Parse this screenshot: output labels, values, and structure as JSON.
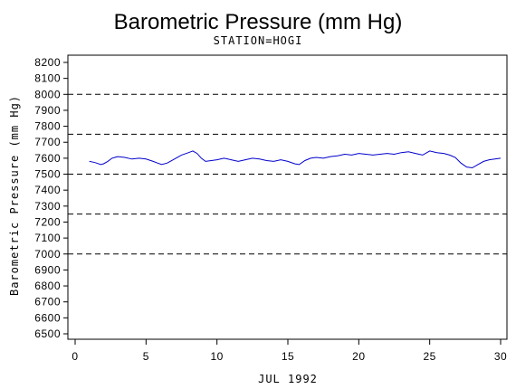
{
  "chart_data": {
    "type": "line",
    "title": "Barometric Pressure (mm Hg)",
    "subtitle": "STATION=HOGI",
    "xlabel": "JUL 1992",
    "ylabel": "Barometric Pressure (mm Hg)",
    "xlim": [
      0,
      30
    ],
    "ylim": [
      6500,
      8200
    ],
    "x_ticks": [
      0,
      5,
      10,
      15,
      20,
      25,
      30
    ],
    "y_ticks": [
      6500,
      6600,
      6700,
      6800,
      6900,
      7000,
      7100,
      7200,
      7300,
      7400,
      7500,
      7600,
      7700,
      7800,
      7900,
      8000,
      8100,
      8200
    ],
    "reference_lines": [
      8000,
      7750,
      7500,
      7250,
      7000
    ],
    "reference_line_style": "dashed",
    "grid": false,
    "line_color": "#0000cc",
    "series": [
      {
        "x": [
          1.0,
          1.3,
          1.5,
          1.8,
          2.0,
          2.3,
          2.6,
          3.0,
          3.5,
          4.0,
          4.5,
          5.0,
          5.5,
          5.8,
          6.1,
          6.5,
          7.0,
          7.5,
          8.0,
          8.3,
          8.6,
          8.9,
          9.2,
          9.6,
          10.0,
          10.5,
          11.0,
          11.5,
          12.0,
          12.5,
          13.0,
          13.5,
          14.0,
          14.5,
          15.0,
          15.5,
          15.8,
          16.2,
          16.6,
          17.0,
          17.5,
          18.0,
          18.5,
          19.0,
          19.5,
          20.0,
          20.5,
          21.0,
          21.5,
          22.0,
          22.5,
          23.0,
          23.5,
          24.0,
          24.5,
          25.0,
          25.5,
          26.0,
          26.4,
          26.8,
          27.2,
          27.6,
          28.0,
          28.4,
          28.8,
          29.2,
          29.6,
          30.0
        ],
        "values": [
          7580,
          7575,
          7570,
          7560,
          7565,
          7580,
          7600,
          7610,
          7605,
          7595,
          7600,
          7595,
          7580,
          7570,
          7560,
          7570,
          7595,
          7620,
          7635,
          7645,
          7630,
          7600,
          7580,
          7585,
          7590,
          7600,
          7590,
          7580,
          7590,
          7600,
          7595,
          7585,
          7580,
          7590,
          7580,
          7565,
          7560,
          7585,
          7600,
          7605,
          7600,
          7610,
          7615,
          7625,
          7620,
          7630,
          7625,
          7620,
          7625,
          7630,
          7625,
          7635,
          7640,
          7630,
          7620,
          7645,
          7635,
          7630,
          7620,
          7605,
          7570,
          7545,
          7540,
          7560,
          7580,
          7590,
          7595,
          7600
        ]
      }
    ]
  }
}
